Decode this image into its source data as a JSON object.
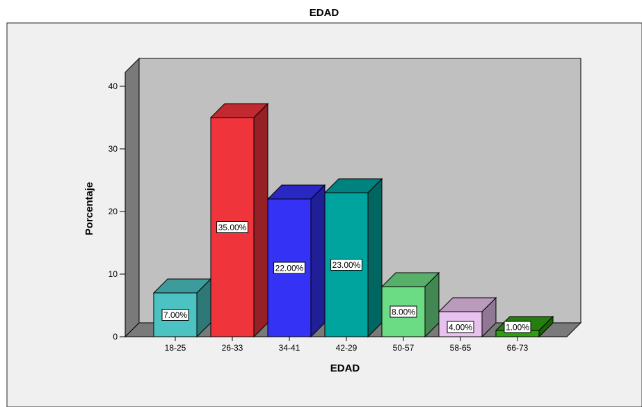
{
  "chart_data": {
    "type": "bar",
    "title": "EDAD",
    "xlabel": "EDAD",
    "ylabel": "Porcentaje",
    "ylim": [
      0,
      40
    ],
    "yticks": [
      "0",
      "10",
      "20",
      "30",
      "40"
    ],
    "categories": [
      "18-25",
      "26-33",
      "34-41",
      "42-29",
      "50-57",
      "58-65",
      "66-73"
    ],
    "values": [
      7,
      35,
      22,
      23,
      8,
      4,
      1
    ],
    "data_labels": [
      "7.00%",
      "35.00%",
      "22.00%",
      "23.00%",
      "8.00%",
      "4.00%",
      "1.00%"
    ],
    "colors": [
      "#4CC2C2",
      "#F0343C",
      "#3432F5",
      "#00A49E",
      "#6CDC84",
      "#E8C2EE",
      "#2E9E12"
    ],
    "grid": false,
    "legend": "none",
    "style": "3d"
  }
}
